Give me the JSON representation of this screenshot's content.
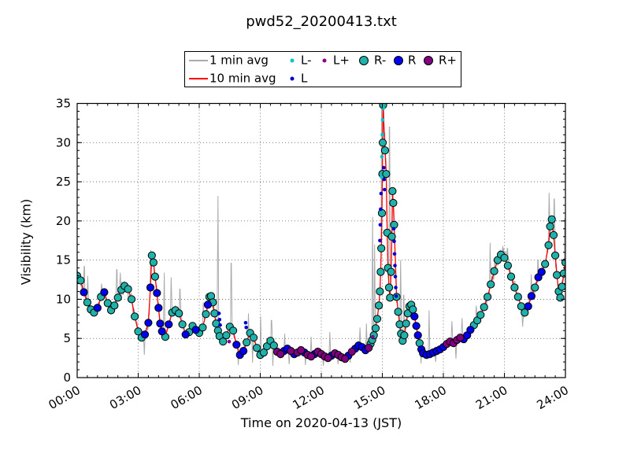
{
  "figure": {
    "title": "pwd52_20200413.txt"
  },
  "legend": {
    "entries": [
      {
        "label": "1 min avg",
        "swatch": "line",
        "color": "#ababab"
      },
      {
        "label": "10 min avg",
        "swatch": "line",
        "color": "#ff0000"
      },
      {
        "label": "L-",
        "swatch": "dot",
        "color": "#00c5cb"
      },
      {
        "label": "L",
        "swatch": "dot",
        "color": "#0000cd"
      },
      {
        "label": "L+",
        "swatch": "dot",
        "color": "#8b008b"
      },
      {
        "label": "R-",
        "swatch": "circle",
        "color": "#20b2aa"
      },
      {
        "label": "R",
        "swatch": "circle",
        "color": "#0000ee"
      },
      {
        "label": "R+",
        "swatch": "circle",
        "color": "#800080"
      }
    ]
  },
  "chart_data": {
    "type": "line+scatter",
    "title": "pwd52_20200413.txt",
    "xlabel": "Time on 2020-04-13 (JST)",
    "ylabel": "Visibility (km)",
    "xlim_hours": [
      0,
      24
    ],
    "ylim": [
      0,
      35
    ],
    "grid": "dotted",
    "x_ticks": [
      {
        "hour": 0,
        "label": "00:00"
      },
      {
        "hour": 3,
        "label": "03:00"
      },
      {
        "hour": 6,
        "label": "06:00"
      },
      {
        "hour": 9,
        "label": "09:00"
      },
      {
        "hour": 12,
        "label": "12:00"
      },
      {
        "hour": 15,
        "label": "15:00"
      },
      {
        "hour": 18,
        "label": "18:00"
      },
      {
        "hour": 21,
        "label": "21:00"
      },
      {
        "hour": 24,
        "label": "24:00"
      }
    ],
    "y_ticks": [
      0,
      5,
      10,
      15,
      20,
      25,
      30,
      35
    ],
    "x_minor_step_hours": 0.5,
    "y_minor_step": 1,
    "colors": {
      "one_min": "#ababab",
      "ten_min": "#ff0000",
      "R-": "#20b2aa",
      "R": "#0000ee",
      "R+": "#800080",
      "L": "#0000cd",
      "L-": "#00c5cb",
      "L+": "#8b008b",
      "marker_edge": "#000000"
    },
    "ten_min_avg_points": [
      [
        0.0,
        13.0,
        "R-"
      ],
      [
        0.17,
        12.4,
        "R-"
      ],
      [
        0.33,
        10.9,
        "R"
      ],
      [
        0.5,
        9.6,
        "R-"
      ],
      [
        0.67,
        8.7,
        "R-"
      ],
      [
        0.83,
        8.3,
        "R-"
      ],
      [
        1.0,
        8.9,
        "R"
      ],
      [
        1.17,
        10.3,
        "R-"
      ],
      [
        1.33,
        10.9,
        "R"
      ],
      [
        1.5,
        9.5,
        "R-"
      ],
      [
        1.67,
        8.6,
        "R-"
      ],
      [
        1.83,
        9.2,
        "R-"
      ],
      [
        2.0,
        10.2,
        "R-"
      ],
      [
        2.17,
        11.2,
        "R-"
      ],
      [
        2.33,
        11.7,
        "R-"
      ],
      [
        2.5,
        11.3,
        "R-"
      ],
      [
        2.67,
        10.0,
        "R-"
      ],
      [
        2.83,
        7.8,
        "R-"
      ],
      [
        3.0,
        5.9,
        "R-"
      ],
      [
        3.17,
        5.1,
        "R-"
      ],
      [
        3.33,
        5.5,
        "R"
      ],
      [
        3.5,
        7.0,
        "R"
      ],
      [
        3.6,
        11.5,
        "R"
      ],
      [
        3.67,
        15.6,
        "R-"
      ],
      [
        3.75,
        14.7,
        "R-"
      ],
      [
        3.83,
        12.9,
        "R-"
      ],
      [
        3.92,
        10.8,
        "R"
      ],
      [
        4.0,
        8.9,
        "R"
      ],
      [
        4.08,
        6.9,
        "R"
      ],
      [
        4.17,
        5.9,
        "R"
      ],
      [
        4.33,
        5.2,
        "R-"
      ],
      [
        4.5,
        6.8,
        "R"
      ],
      [
        4.67,
        8.3,
        "R-"
      ],
      [
        4.83,
        8.6,
        "R-"
      ],
      [
        5.0,
        8.2,
        "R-"
      ],
      [
        5.17,
        6.8,
        "R-"
      ],
      [
        5.33,
        5.5,
        "R"
      ],
      [
        5.5,
        5.8,
        "R-"
      ],
      [
        5.67,
        6.6,
        "R-"
      ],
      [
        5.83,
        6.1,
        "R"
      ],
      [
        6.0,
        5.7,
        "R-"
      ],
      [
        6.17,
        6.4,
        "R-"
      ],
      [
        6.33,
        8.1,
        "R-"
      ],
      [
        6.42,
        9.3,
        "R"
      ],
      [
        6.5,
        10.3,
        "R-"
      ],
      [
        6.58,
        10.4,
        "R-"
      ],
      [
        6.67,
        9.6,
        "R-"
      ],
      [
        6.75,
        8.2,
        "R-"
      ],
      [
        6.83,
        6.9,
        "R-"
      ],
      [
        6.92,
        6.0,
        "R-"
      ],
      [
        7.0,
        5.3,
        "R-"
      ],
      [
        7.17,
        4.6,
        "R-"
      ],
      [
        7.33,
        5.4,
        "R-"
      ],
      [
        7.5,
        6.5,
        "R-"
      ],
      [
        7.67,
        6.0,
        "R-"
      ],
      [
        7.83,
        4.2,
        "R"
      ],
      [
        8.0,
        2.9,
        "R"
      ],
      [
        8.17,
        3.4,
        "R"
      ],
      [
        8.33,
        4.5,
        "R-"
      ],
      [
        8.5,
        5.7,
        "R-"
      ],
      [
        8.67,
        5.1,
        "R-"
      ],
      [
        8.83,
        3.8,
        "R-"
      ],
      [
        9.0,
        2.9,
        "R-"
      ],
      [
        9.17,
        3.2,
        "R-"
      ],
      [
        9.33,
        4.0,
        "R-"
      ],
      [
        9.5,
        4.7,
        "R-"
      ],
      [
        9.67,
        4.1,
        "R-"
      ],
      [
        9.83,
        3.3,
        "R+"
      ],
      [
        10.0,
        3.0,
        "R+"
      ],
      [
        10.17,
        3.4,
        "R"
      ],
      [
        10.33,
        3.7,
        "R"
      ],
      [
        10.5,
        3.4,
        "R+"
      ],
      [
        10.67,
        3.0,
        "R"
      ],
      [
        10.83,
        3.2,
        "R+"
      ],
      [
        11.0,
        3.5,
        "R+"
      ],
      [
        11.17,
        3.2,
        "R"
      ],
      [
        11.33,
        2.9,
        "R+"
      ],
      [
        11.5,
        2.7,
        "R+"
      ],
      [
        11.67,
        3.0,
        "R"
      ],
      [
        11.83,
        3.3,
        "R+"
      ],
      [
        12.0,
        3.0,
        "R+"
      ],
      [
        12.17,
        2.7,
        "R+"
      ],
      [
        12.33,
        2.5,
        "R+"
      ],
      [
        12.5,
        2.8,
        "R"
      ],
      [
        12.67,
        3.1,
        "R+"
      ],
      [
        12.83,
        2.9,
        "R+"
      ],
      [
        13.0,
        2.6,
        "R+"
      ],
      [
        13.17,
        2.4,
        "R+"
      ],
      [
        13.33,
        2.8,
        "R"
      ],
      [
        13.5,
        3.3,
        "R+"
      ],
      [
        13.67,
        3.7,
        "R"
      ],
      [
        13.83,
        4.1,
        "R"
      ],
      [
        14.0,
        3.9,
        "R"
      ],
      [
        14.17,
        3.5,
        "R"
      ],
      [
        14.33,
        3.8,
        "R+"
      ],
      [
        14.42,
        4.3,
        "R-"
      ],
      [
        14.5,
        4.8,
        "R-"
      ],
      [
        14.58,
        5.4,
        "R-"
      ],
      [
        14.67,
        6.3,
        "R-"
      ],
      [
        14.75,
        7.5,
        "R-"
      ],
      [
        14.83,
        9.2,
        "R-"
      ],
      [
        14.88,
        11.0,
        "R-"
      ],
      [
        14.92,
        13.5,
        "R-"
      ],
      [
        14.95,
        16.5,
        "R-"
      ],
      [
        14.98,
        21.0,
        "R-"
      ],
      [
        15.0,
        26.0,
        "R-"
      ],
      [
        15.02,
        30.0,
        "R-"
      ],
      [
        15.04,
        34.8,
        "R-"
      ],
      [
        15.13,
        29.0,
        "R-"
      ],
      [
        15.19,
        26.0,
        "R-"
      ],
      [
        15.24,
        18.5,
        "R-"
      ],
      [
        15.28,
        14.0,
        "R-"
      ],
      [
        15.33,
        11.5,
        "R-"
      ],
      [
        15.38,
        10.2,
        "R-"
      ],
      [
        15.43,
        13.5,
        "R-"
      ],
      [
        15.47,
        18.0,
        "R-"
      ],
      [
        15.5,
        23.8,
        "R-"
      ],
      [
        15.54,
        22.3,
        "R-"
      ],
      [
        15.58,
        19.5,
        "R-"
      ],
      [
        15.7,
        10.3,
        "R-"
      ],
      [
        15.78,
        8.4,
        "R-"
      ],
      [
        15.85,
        6.8,
        "R-"
      ],
      [
        15.92,
        5.6,
        "R-"
      ],
      [
        16.0,
        4.7,
        "R-"
      ],
      [
        16.08,
        5.4,
        "R-"
      ],
      [
        16.17,
        6.9,
        "R-"
      ],
      [
        16.25,
        8.2,
        "R-"
      ],
      [
        16.33,
        9.1,
        "R-"
      ],
      [
        16.42,
        9.3,
        "R-"
      ],
      [
        16.5,
        8.7,
        "R-"
      ],
      [
        16.58,
        7.8,
        "R"
      ],
      [
        16.67,
        6.6,
        "R"
      ],
      [
        16.75,
        5.4,
        "R"
      ],
      [
        16.83,
        4.4,
        "R-"
      ],
      [
        16.92,
        3.6,
        "R"
      ],
      [
        17.0,
        3.1,
        "R"
      ],
      [
        17.17,
        2.9,
        "R"
      ],
      [
        17.33,
        3.0,
        "R"
      ],
      [
        17.5,
        3.2,
        "R"
      ],
      [
        17.67,
        3.4,
        "R"
      ],
      [
        17.83,
        3.6,
        "R"
      ],
      [
        18.0,
        3.9,
        "R"
      ],
      [
        18.17,
        4.3,
        "R+"
      ],
      [
        18.33,
        4.6,
        "R+"
      ],
      [
        18.5,
        4.4,
        "R+"
      ],
      [
        18.67,
        4.8,
        "R+"
      ],
      [
        18.83,
        5.1,
        "R+"
      ],
      [
        19.0,
        4.9,
        "R"
      ],
      [
        19.17,
        5.4,
        "R"
      ],
      [
        19.33,
        6.1,
        "R"
      ],
      [
        19.5,
        6.7,
        "R-"
      ],
      [
        19.67,
        7.3,
        "R-"
      ],
      [
        19.83,
        8.0,
        "R-"
      ],
      [
        20.0,
        9.0,
        "R-"
      ],
      [
        20.17,
        10.3,
        "R-"
      ],
      [
        20.33,
        11.9,
        "R-"
      ],
      [
        20.5,
        13.6,
        "R-"
      ],
      [
        20.67,
        15.0,
        "R-"
      ],
      [
        20.83,
        15.7,
        "R-"
      ],
      [
        21.0,
        15.3,
        "R-"
      ],
      [
        21.17,
        14.3,
        "R-"
      ],
      [
        21.33,
        12.9,
        "R-"
      ],
      [
        21.5,
        11.5,
        "R-"
      ],
      [
        21.67,
        10.3,
        "R-"
      ],
      [
        21.83,
        9.1,
        "R-"
      ],
      [
        22.0,
        8.3,
        "R-"
      ],
      [
        22.17,
        9.1,
        "R"
      ],
      [
        22.33,
        10.4,
        "R"
      ],
      [
        22.5,
        11.5,
        "R-"
      ],
      [
        22.67,
        12.8,
        "R"
      ],
      [
        22.83,
        13.5,
        "R"
      ],
      [
        23.0,
        14.5,
        "R-"
      ],
      [
        23.17,
        16.9,
        "R-"
      ],
      [
        23.25,
        19.3,
        "R-"
      ],
      [
        23.33,
        20.2,
        "R-"
      ],
      [
        23.42,
        18.2,
        "R-"
      ],
      [
        23.5,
        15.6,
        "R-"
      ],
      [
        23.58,
        13.1,
        "R-"
      ],
      [
        23.67,
        11.0,
        "R-"
      ],
      [
        23.75,
        10.2,
        "R-"
      ],
      [
        23.83,
        11.6,
        "R-"
      ],
      [
        23.92,
        13.3,
        "R-"
      ],
      [
        24.0,
        14.7,
        "R-"
      ]
    ],
    "small_dots": {
      "L": [
        [
          6.97,
          8.2
        ],
        [
          7.0,
          7.4
        ],
        [
          7.03,
          6.7
        ],
        [
          8.28,
          7.0
        ],
        [
          8.31,
          6.4
        ],
        [
          14.88,
          17.5
        ],
        [
          14.9,
          19.5
        ],
        [
          14.92,
          21.5
        ],
        [
          14.94,
          23.5
        ],
        [
          15.07,
          26.8
        ],
        [
          15.09,
          25.3
        ],
        [
          15.11,
          24.0
        ],
        [
          15.56,
          19.0
        ],
        [
          15.58,
          17.4
        ],
        [
          15.6,
          15.8
        ],
        [
          15.62,
          14.3
        ],
        [
          15.64,
          12.9
        ],
        [
          15.66,
          11.5
        ],
        [
          15.68,
          10.4
        ]
      ],
      "L-": [
        [
          14.96,
          25.6
        ],
        [
          14.98,
          28.2
        ],
        [
          15.0,
          31.0
        ],
        [
          15.02,
          32.9
        ],
        [
          15.05,
          34.4
        ]
      ],
      "L+": [
        [
          7.47,
          4.6
        ],
        [
          14.53,
          5.2
        ]
      ]
    },
    "one_min_spikes": [
      [
        0.35,
        14.2
      ],
      [
        0.52,
        13.0
      ],
      [
        1.2,
        12.0
      ],
      [
        1.95,
        13.8
      ],
      [
        2.12,
        13.4
      ],
      [
        3.3,
        2.9
      ],
      [
        3.62,
        16.3
      ],
      [
        4.28,
        13.4
      ],
      [
        4.62,
        12.8
      ],
      [
        5.05,
        11.3
      ],
      [
        6.2,
        9.6
      ],
      [
        6.92,
        23.2
      ],
      [
        7.57,
        14.6
      ],
      [
        7.92,
        1.6
      ],
      [
        8.42,
        8.2
      ],
      [
        8.62,
        1.9
      ],
      [
        9.02,
        7.8
      ],
      [
        9.55,
        7.3
      ],
      [
        9.62,
        1.5
      ],
      [
        10.2,
        5.6
      ],
      [
        10.42,
        1.7
      ],
      [
        11.22,
        1.6
      ],
      [
        11.5,
        5.2
      ],
      [
        12.1,
        1.5
      ],
      [
        12.42,
        5.8
      ],
      [
        12.82,
        1.7
      ],
      [
        13.42,
        1.9
      ],
      [
        13.9,
        6.4
      ],
      [
        14.22,
        6.9
      ],
      [
        14.52,
        20.5
      ],
      [
        14.62,
        17.0
      ],
      [
        14.97,
        36.0
      ],
      [
        15.35,
        32.0
      ],
      [
        15.9,
        15.0
      ],
      [
        16.05,
        10.5
      ],
      [
        16.9,
        1.8
      ],
      [
        17.3,
        8.6
      ],
      [
        17.62,
        2.0
      ],
      [
        18.42,
        7.2
      ],
      [
        18.62,
        2.4
      ],
      [
        18.92,
        7.6
      ],
      [
        19.62,
        9.2
      ],
      [
        20.3,
        17.2
      ],
      [
        20.92,
        16.8
      ],
      [
        21.15,
        16.5
      ],
      [
        21.9,
        6.5
      ],
      [
        22.32,
        13.2
      ],
      [
        22.65,
        15.0
      ],
      [
        23.2,
        23.6
      ],
      [
        23.45,
        22.8
      ],
      [
        23.97,
        20.3
      ]
    ],
    "one_min_noise": {
      "seed": 42,
      "base": 0.35,
      "rel": 0.07,
      "step_hours": 0.02
    }
  }
}
